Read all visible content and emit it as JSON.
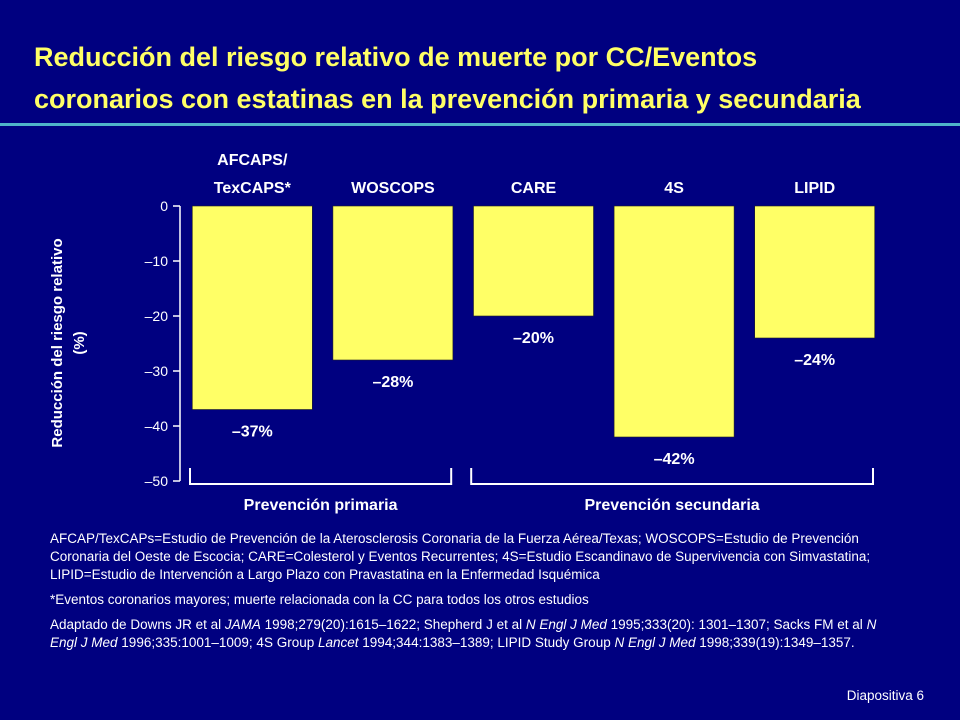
{
  "slide": {
    "title_line1": "Reducción del riesgo relativo de muerte por CC/Eventos",
    "title_line2": "coronarios con estatinas en la prevención primaria y secundaria",
    "slide_number": "Diapositiva 6"
  },
  "colors": {
    "background": "#000080",
    "title": "#ffff66",
    "bar": "#ffff66",
    "rule": "#4fb3c9",
    "text": "#ffffff"
  },
  "chart_data": {
    "type": "bar",
    "orientation": "vertical",
    "categories": [
      "AFCAPS/ TexCAPS*",
      "WOSCOPS",
      "CARE",
      "4S",
      "LIPID"
    ],
    "category_label_lines": [
      [
        "AFCAPS/",
        "TexCAPS*"
      ],
      [
        "WOSCOPS"
      ],
      [
        "CARE"
      ],
      [
        "4S"
      ],
      [
        "LIPID"
      ]
    ],
    "values": [
      -37,
      -28,
      -20,
      -42,
      -24
    ],
    "data_labels": [
      "–37%",
      "–28%",
      "–20%",
      "–42%",
      "–24%"
    ],
    "ylabel_line1": "Reducción del riesgo relativo",
    "ylabel_line2": "(%)",
    "ylim": [
      -50,
      0
    ],
    "yticks": [
      0,
      -10,
      -20,
      -30,
      -40,
      -50
    ],
    "ytick_labels": [
      "0",
      "–10",
      "–20",
      "–30",
      "–40",
      "–50"
    ],
    "grid": false,
    "groups": [
      {
        "label": "Prevención primaria",
        "categories": [
          "AFCAPS/ TexCAPS*",
          "WOSCOPS"
        ]
      },
      {
        "label": "Prevención secundaria",
        "categories": [
          "CARE",
          "4S",
          "LIPID"
        ]
      }
    ]
  },
  "footnotes": {
    "abbreviations": "AFCAP/TexCAPs=Estudio de Prevención de la Aterosclerosis Coronaria de la Fuerza Aérea/Texas; WOSCOPS=Estudio de Prevención Coronaria del Oeste de Escocia; CARE=Colesterol y Eventos Recurrentes; 4S=Estudio Escandinavo de Supervivencia con Simvastatina; LIPID=Estudio de Intervención a Largo Plazo con Pravastatina en la Enfermedad Isquémica",
    "asterisk": "*Eventos coronarios mayores; muerte relacionada con la CC para todos los otros estudios",
    "reference": "Adaptado de Downs JR et al JAMA 1998;279(20):1615–1622; Shepherd J et al N Engl J Med 1995;333(20): 1301–1307; Sacks FM et al N Engl J Med 1996;335:1001–1009; 4S Group Lancet 1994;344:1383–1389; LIPID Study Group N Engl J Med 1998;339(19):1349–1357."
  }
}
